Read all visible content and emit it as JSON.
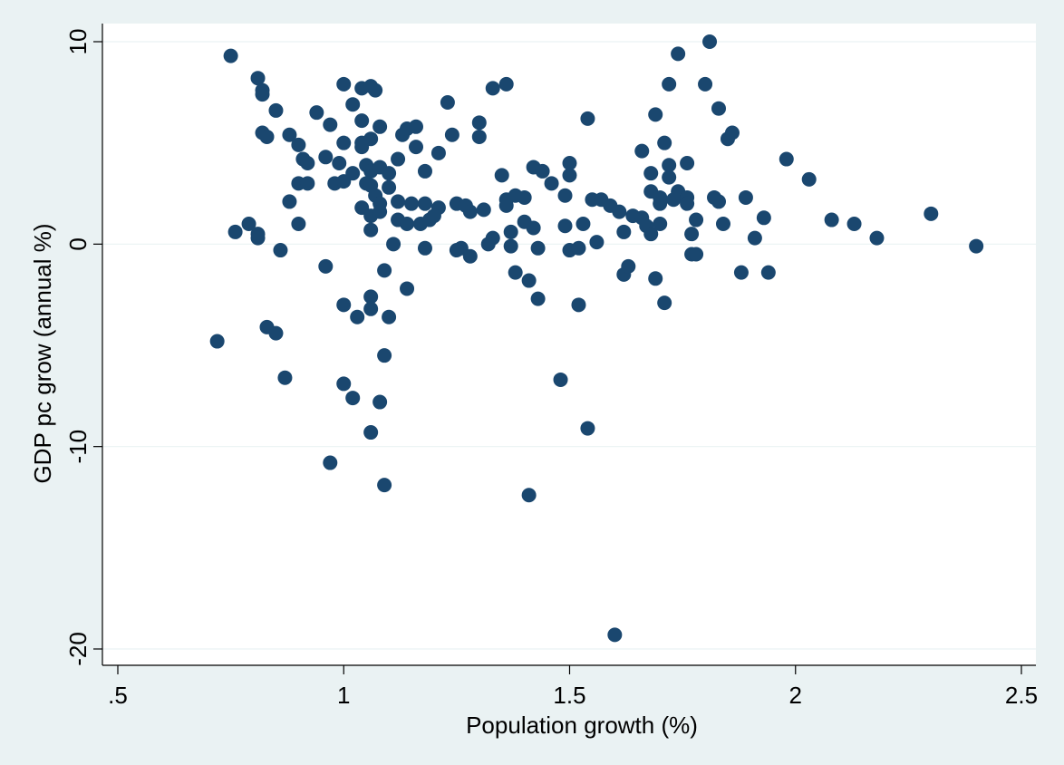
{
  "chart_data": {
    "type": "scatter",
    "xlabel": "Population growth (%)",
    "ylabel": "GDP pc grow (annual %)",
    "xlim": [
      0.5,
      2.5
    ],
    "ylim": [
      -20,
      10
    ],
    "xticks": [
      {
        "v": 0.5,
        "label": ".5"
      },
      {
        "v": 1,
        "label": "1"
      },
      {
        "v": 1.5,
        "label": "1.5"
      },
      {
        "v": 2,
        "label": "2"
      },
      {
        "v": 2.5,
        "label": "2.5"
      }
    ],
    "yticks": [
      {
        "v": -20,
        "label": "-20"
      },
      {
        "v": -10,
        "label": "-10"
      },
      {
        "v": 0,
        "label": "0"
      },
      {
        "v": 10,
        "label": "10"
      }
    ],
    "grid": true,
    "marker_color": "#1a476f",
    "background": "#eaf2f3",
    "series": [
      {
        "points": [
          [
            0.75,
            9.3
          ],
          [
            0.81,
            8.2
          ],
          [
            0.82,
            7.6
          ],
          [
            0.82,
            7.4
          ],
          [
            0.82,
            5.5
          ],
          [
            0.83,
            5.3
          ],
          [
            0.85,
            6.6
          ],
          [
            0.88,
            5.4
          ],
          [
            0.9,
            4.9
          ],
          [
            0.91,
            4.2
          ],
          [
            0.92,
            4.0
          ],
          [
            0.9,
            3.0
          ],
          [
            0.92,
            3.0
          ],
          [
            0.88,
            2.1
          ],
          [
            0.9,
            1.0
          ],
          [
            0.94,
            6.5
          ],
          [
            0.97,
            5.9
          ],
          [
            0.96,
            4.3
          ],
          [
            0.99,
            4.0
          ],
          [
            0.98,
            3.0
          ],
          [
            1.0,
            3.1
          ],
          [
            1.0,
            5.0
          ],
          [
            1.02,
            3.5
          ],
          [
            1.0,
            7.9
          ],
          [
            1.02,
            6.9
          ],
          [
            1.04,
            7.7
          ],
          [
            1.06,
            7.8
          ],
          [
            1.07,
            7.6
          ],
          [
            1.04,
            6.1
          ],
          [
            1.04,
            5.0
          ],
          [
            1.04,
            4.8
          ],
          [
            1.06,
            5.2
          ],
          [
            1.05,
            3.9
          ],
          [
            1.06,
            3.6
          ],
          [
            1.08,
            3.8
          ],
          [
            1.05,
            3.0
          ],
          [
            1.06,
            2.9
          ],
          [
            1.08,
            5.8
          ],
          [
            1.07,
            2.4
          ],
          [
            1.08,
            2.0
          ],
          [
            1.04,
            1.8
          ],
          [
            1.06,
            1.4
          ],
          [
            1.08,
            1.6
          ],
          [
            1.06,
            0.7
          ],
          [
            1.1,
            3.5
          ],
          [
            1.1,
            2.8
          ],
          [
            1.12,
            4.2
          ],
          [
            1.13,
            5.4
          ],
          [
            1.14,
            5.7
          ],
          [
            1.16,
            5.8
          ],
          [
            1.16,
            4.8
          ],
          [
            1.12,
            2.1
          ],
          [
            1.15,
            2.0
          ],
          [
            1.18,
            2.0
          ],
          [
            1.12,
            1.2
          ],
          [
            1.14,
            1.0
          ],
          [
            1.17,
            1.0
          ],
          [
            1.19,
            1.2
          ],
          [
            1.18,
            3.6
          ],
          [
            1.21,
            4.5
          ],
          [
            1.23,
            7.0
          ],
          [
            1.24,
            5.4
          ],
          [
            1.21,
            1.8
          ],
          [
            1.2,
            1.4
          ],
          [
            1.25,
            2.0
          ],
          [
            1.27,
            1.9
          ],
          [
            1.28,
            1.6
          ],
          [
            1.26,
            -0.2
          ],
          [
            1.25,
            -0.3
          ],
          [
            1.28,
            -0.6
          ],
          [
            1.3,
            5.3
          ],
          [
            1.3,
            6.0
          ],
          [
            1.33,
            7.7
          ],
          [
            1.36,
            7.9
          ],
          [
            1.31,
            1.7
          ],
          [
            1.33,
            0.3
          ],
          [
            1.32,
            0.0
          ],
          [
            1.36,
            2.2
          ],
          [
            1.36,
            1.9
          ],
          [
            1.38,
            2.4
          ],
          [
            1.35,
            3.4
          ],
          [
            1.37,
            0.6
          ],
          [
            1.37,
            -0.1
          ],
          [
            1.4,
            2.3
          ],
          [
            1.4,
            1.1
          ],
          [
            1.42,
            0.8
          ],
          [
            1.43,
            -0.2
          ],
          [
            1.38,
            -1.4
          ],
          [
            1.41,
            -1.8
          ],
          [
            1.43,
            -2.7
          ],
          [
            1.42,
            3.8
          ],
          [
            1.44,
            3.6
          ],
          [
            1.46,
            3.0
          ],
          [
            1.49,
            2.4
          ],
          [
            1.5,
            3.4
          ],
          [
            1.5,
            4.0
          ],
          [
            1.49,
            0.9
          ],
          [
            1.5,
            -0.3
          ],
          [
            1.52,
            -0.2
          ],
          [
            1.53,
            1.0
          ],
          [
            1.54,
            6.2
          ],
          [
            1.55,
            2.2
          ],
          [
            1.57,
            2.2
          ],
          [
            1.59,
            1.9
          ],
          [
            1.61,
            1.6
          ],
          [
            1.56,
            0.1
          ],
          [
            1.62,
            0.6
          ],
          [
            1.62,
            -1.5
          ],
          [
            1.64,
            1.4
          ],
          [
            1.63,
            -1.1
          ],
          [
            1.66,
            1.3
          ],
          [
            1.67,
            0.9
          ],
          [
            1.68,
            0.5
          ],
          [
            1.66,
            4.6
          ],
          [
            1.68,
            3.5
          ],
          [
            1.68,
            2.6
          ],
          [
            1.69,
            6.4
          ],
          [
            1.7,
            2.3
          ],
          [
            1.7,
            2.0
          ],
          [
            1.71,
            5.0
          ],
          [
            1.72,
            7.9
          ],
          [
            1.72,
            3.9
          ],
          [
            1.72,
            3.3
          ],
          [
            1.73,
            2.2
          ],
          [
            1.74,
            9.4
          ],
          [
            1.74,
            2.6
          ],
          [
            1.76,
            2.3
          ],
          [
            1.76,
            2.0
          ],
          [
            1.76,
            4.0
          ],
          [
            1.7,
            1.0
          ],
          [
            1.77,
            0.5
          ],
          [
            1.78,
            1.2
          ],
          [
            1.77,
            -0.5
          ],
          [
            1.78,
            -0.5
          ],
          [
            1.69,
            -1.7
          ],
          [
            1.71,
            -2.9
          ],
          [
            1.81,
            10.0
          ],
          [
            1.8,
            7.9
          ],
          [
            1.83,
            6.7
          ],
          [
            1.85,
            5.2
          ],
          [
            1.86,
            5.5
          ],
          [
            1.82,
            2.3
          ],
          [
            1.83,
            2.1
          ],
          [
            1.84,
            1.0
          ],
          [
            1.89,
            2.3
          ],
          [
            1.88,
            -1.4
          ],
          [
            1.91,
            0.3
          ],
          [
            1.93,
            1.3
          ],
          [
            1.94,
            -1.4
          ],
          [
            1.98,
            4.2
          ],
          [
            2.03,
            3.2
          ],
          [
            2.08,
            1.2
          ],
          [
            2.13,
            1.0
          ],
          [
            2.18,
            0.3
          ],
          [
            2.3,
            1.5
          ],
          [
            2.4,
            -0.1
          ],
          [
            0.76,
            0.6
          ],
          [
            0.79,
            1.0
          ],
          [
            0.81,
            0.5
          ],
          [
            0.81,
            0.3
          ],
          [
            0.86,
            -0.3
          ],
          [
            0.72,
            -4.8
          ],
          [
            0.83,
            -4.1
          ],
          [
            0.85,
            -4.4
          ],
          [
            0.87,
            -6.6
          ],
          [
            0.96,
            -1.1
          ],
          [
            1.0,
            -3.0
          ],
          [
            1.03,
            -3.6
          ],
          [
            1.06,
            -2.6
          ],
          [
            1.06,
            -3.2
          ],
          [
            1.09,
            -1.3
          ],
          [
            1.1,
            -3.6
          ],
          [
            1.09,
            -5.5
          ],
          [
            1.0,
            -6.9
          ],
          [
            1.02,
            -7.6
          ],
          [
            1.08,
            -7.8
          ],
          [
            1.06,
            -9.3
          ],
          [
            0.97,
            -10.8
          ],
          [
            1.09,
            -11.9
          ],
          [
            1.11,
            0.0
          ],
          [
            1.14,
            -2.2
          ],
          [
            1.18,
            -0.2
          ],
          [
            1.41,
            -12.4
          ],
          [
            1.48,
            -6.7
          ],
          [
            1.52,
            -3.0
          ],
          [
            1.54,
            -9.1
          ],
          [
            1.6,
            -19.3
          ]
        ]
      }
    ]
  }
}
